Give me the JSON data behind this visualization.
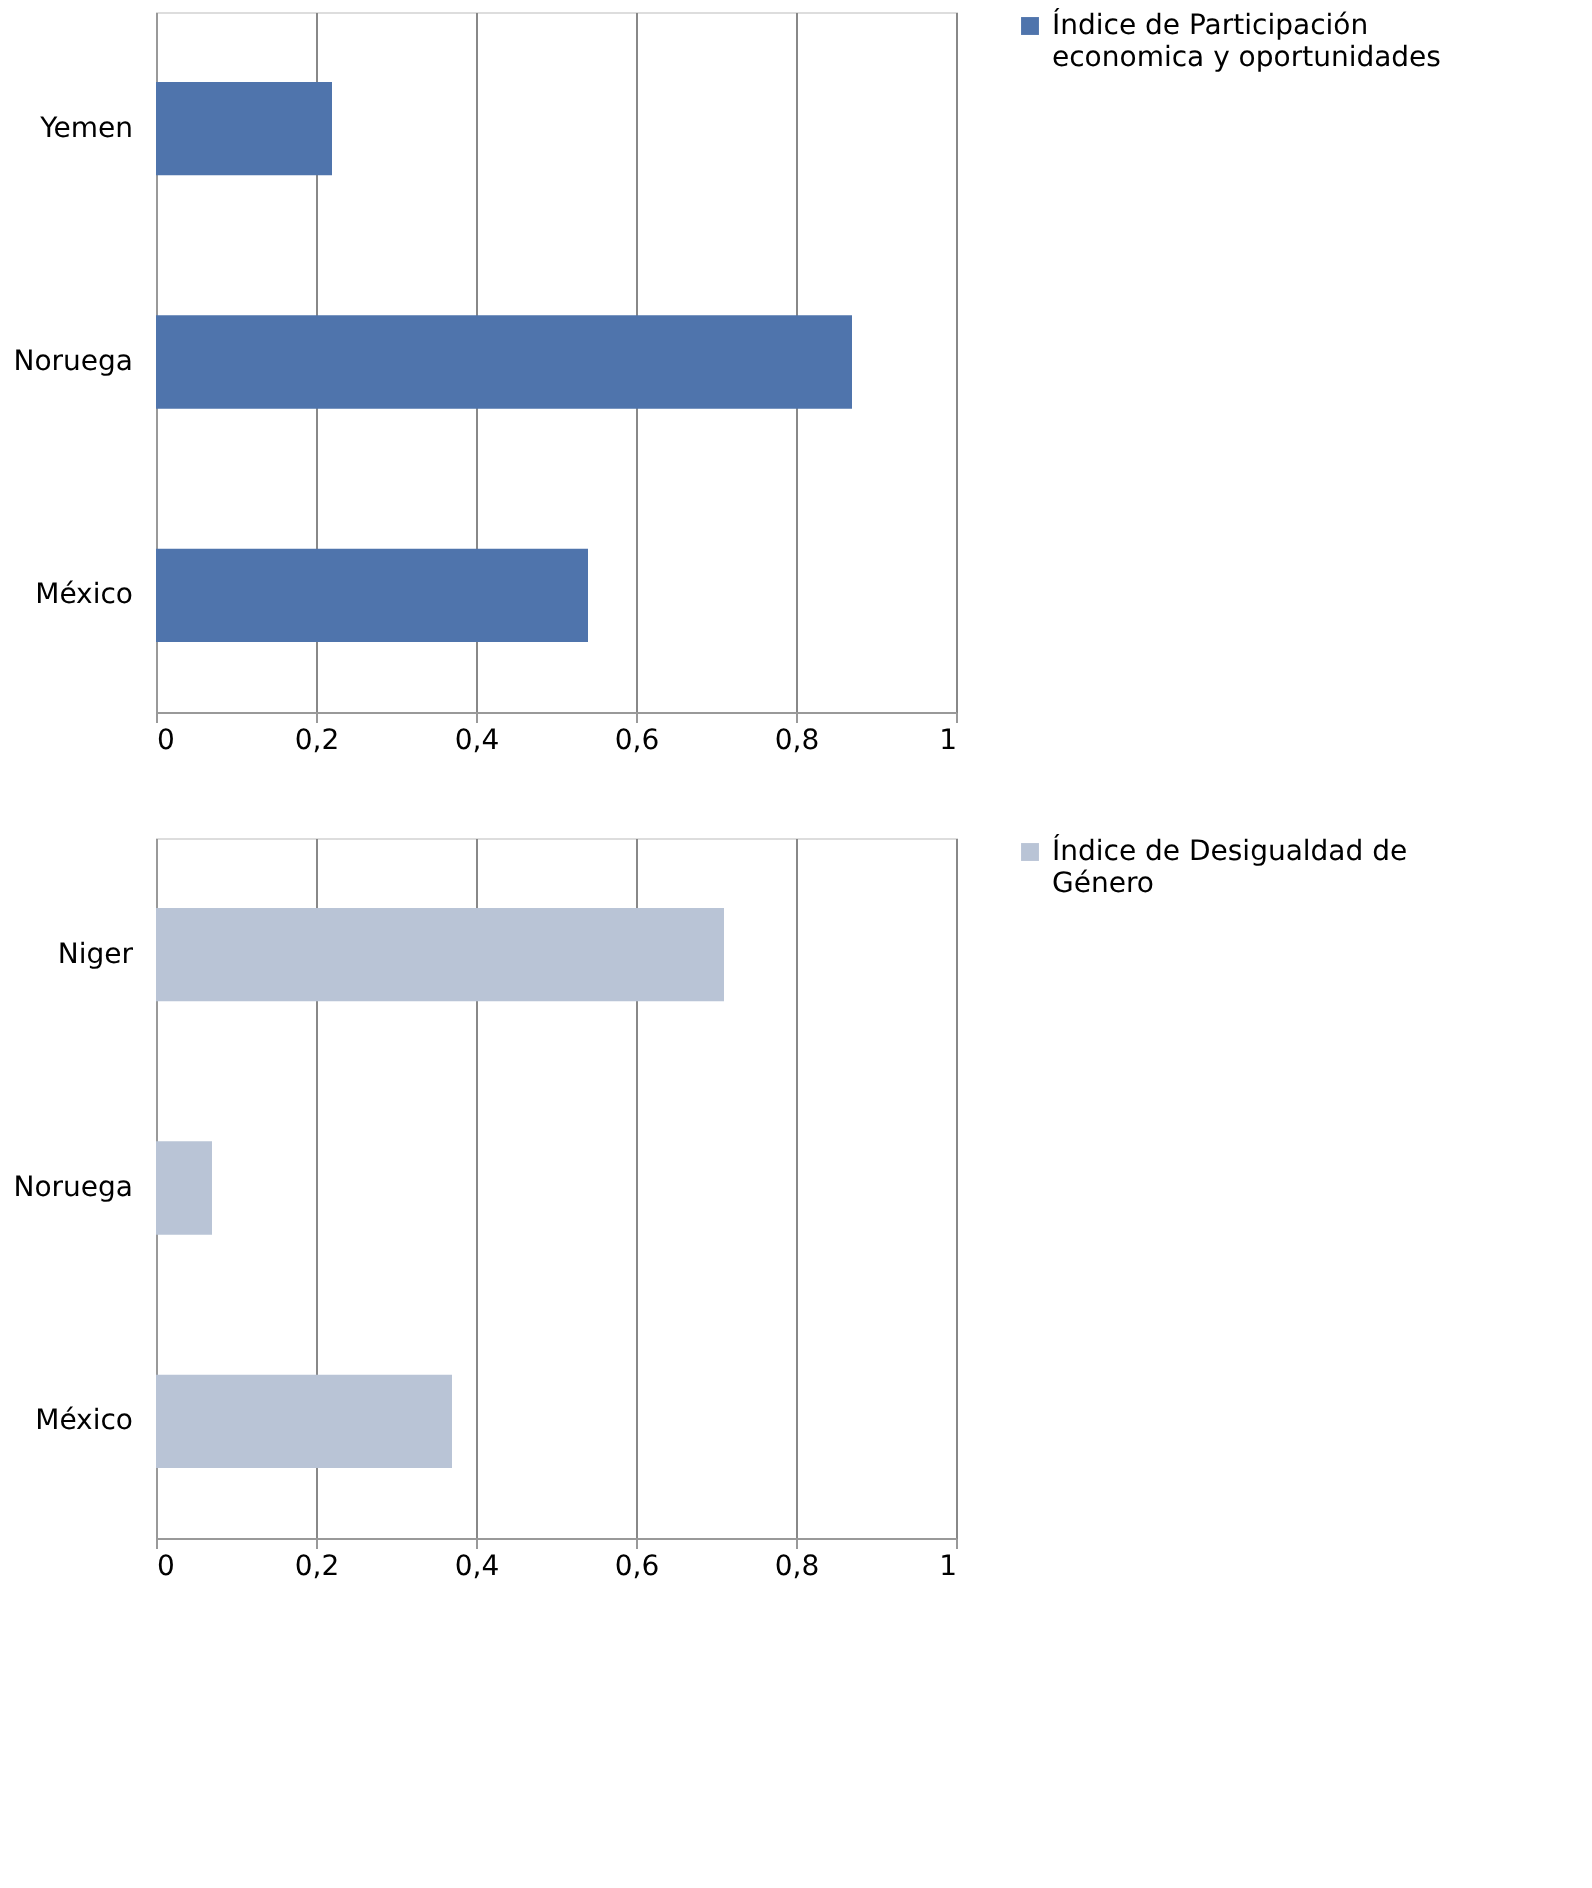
{
  "chart_data": [
    {
      "type": "bar",
      "orientation": "horizontal",
      "categories": [
        "Yemen",
        "Noruega",
        "México"
      ],
      "series": [
        {
          "name": "Índice de Participación economica y oportunidades",
          "color": "#4f74ac",
          "values": [
            0.22,
            0.87,
            0.54
          ]
        }
      ],
      "xlim": [
        0,
        1
      ],
      "xticks": [
        0,
        {
          "value": 0.2,
          "label": "0,2"
        },
        {
          "value": 0.4,
          "label": "0,4"
        },
        {
          "value": 0.6,
          "label": "0,6"
        },
        {
          "value": 0.8,
          "label": "0,8"
        },
        1
      ],
      "grid": "x",
      "legend": "right"
    },
    {
      "type": "bar",
      "orientation": "horizontal",
      "categories": [
        "Niger",
        "Noruega",
        "México"
      ],
      "series": [
        {
          "name": "Índice de Desigualdad de Género",
          "color": "#b9c4d6",
          "values": [
            0.71,
            0.07,
            0.37
          ]
        }
      ],
      "xlim": [
        0,
        1
      ],
      "xticks": [
        0,
        {
          "value": 0.2,
          "label": "0,2"
        },
        {
          "value": 0.4,
          "label": "0,4"
        },
        {
          "value": 0.6,
          "label": "0,6"
        },
        {
          "value": 0.8,
          "label": "0,8"
        },
        1
      ],
      "grid": "x",
      "legend": "right"
    }
  ]
}
